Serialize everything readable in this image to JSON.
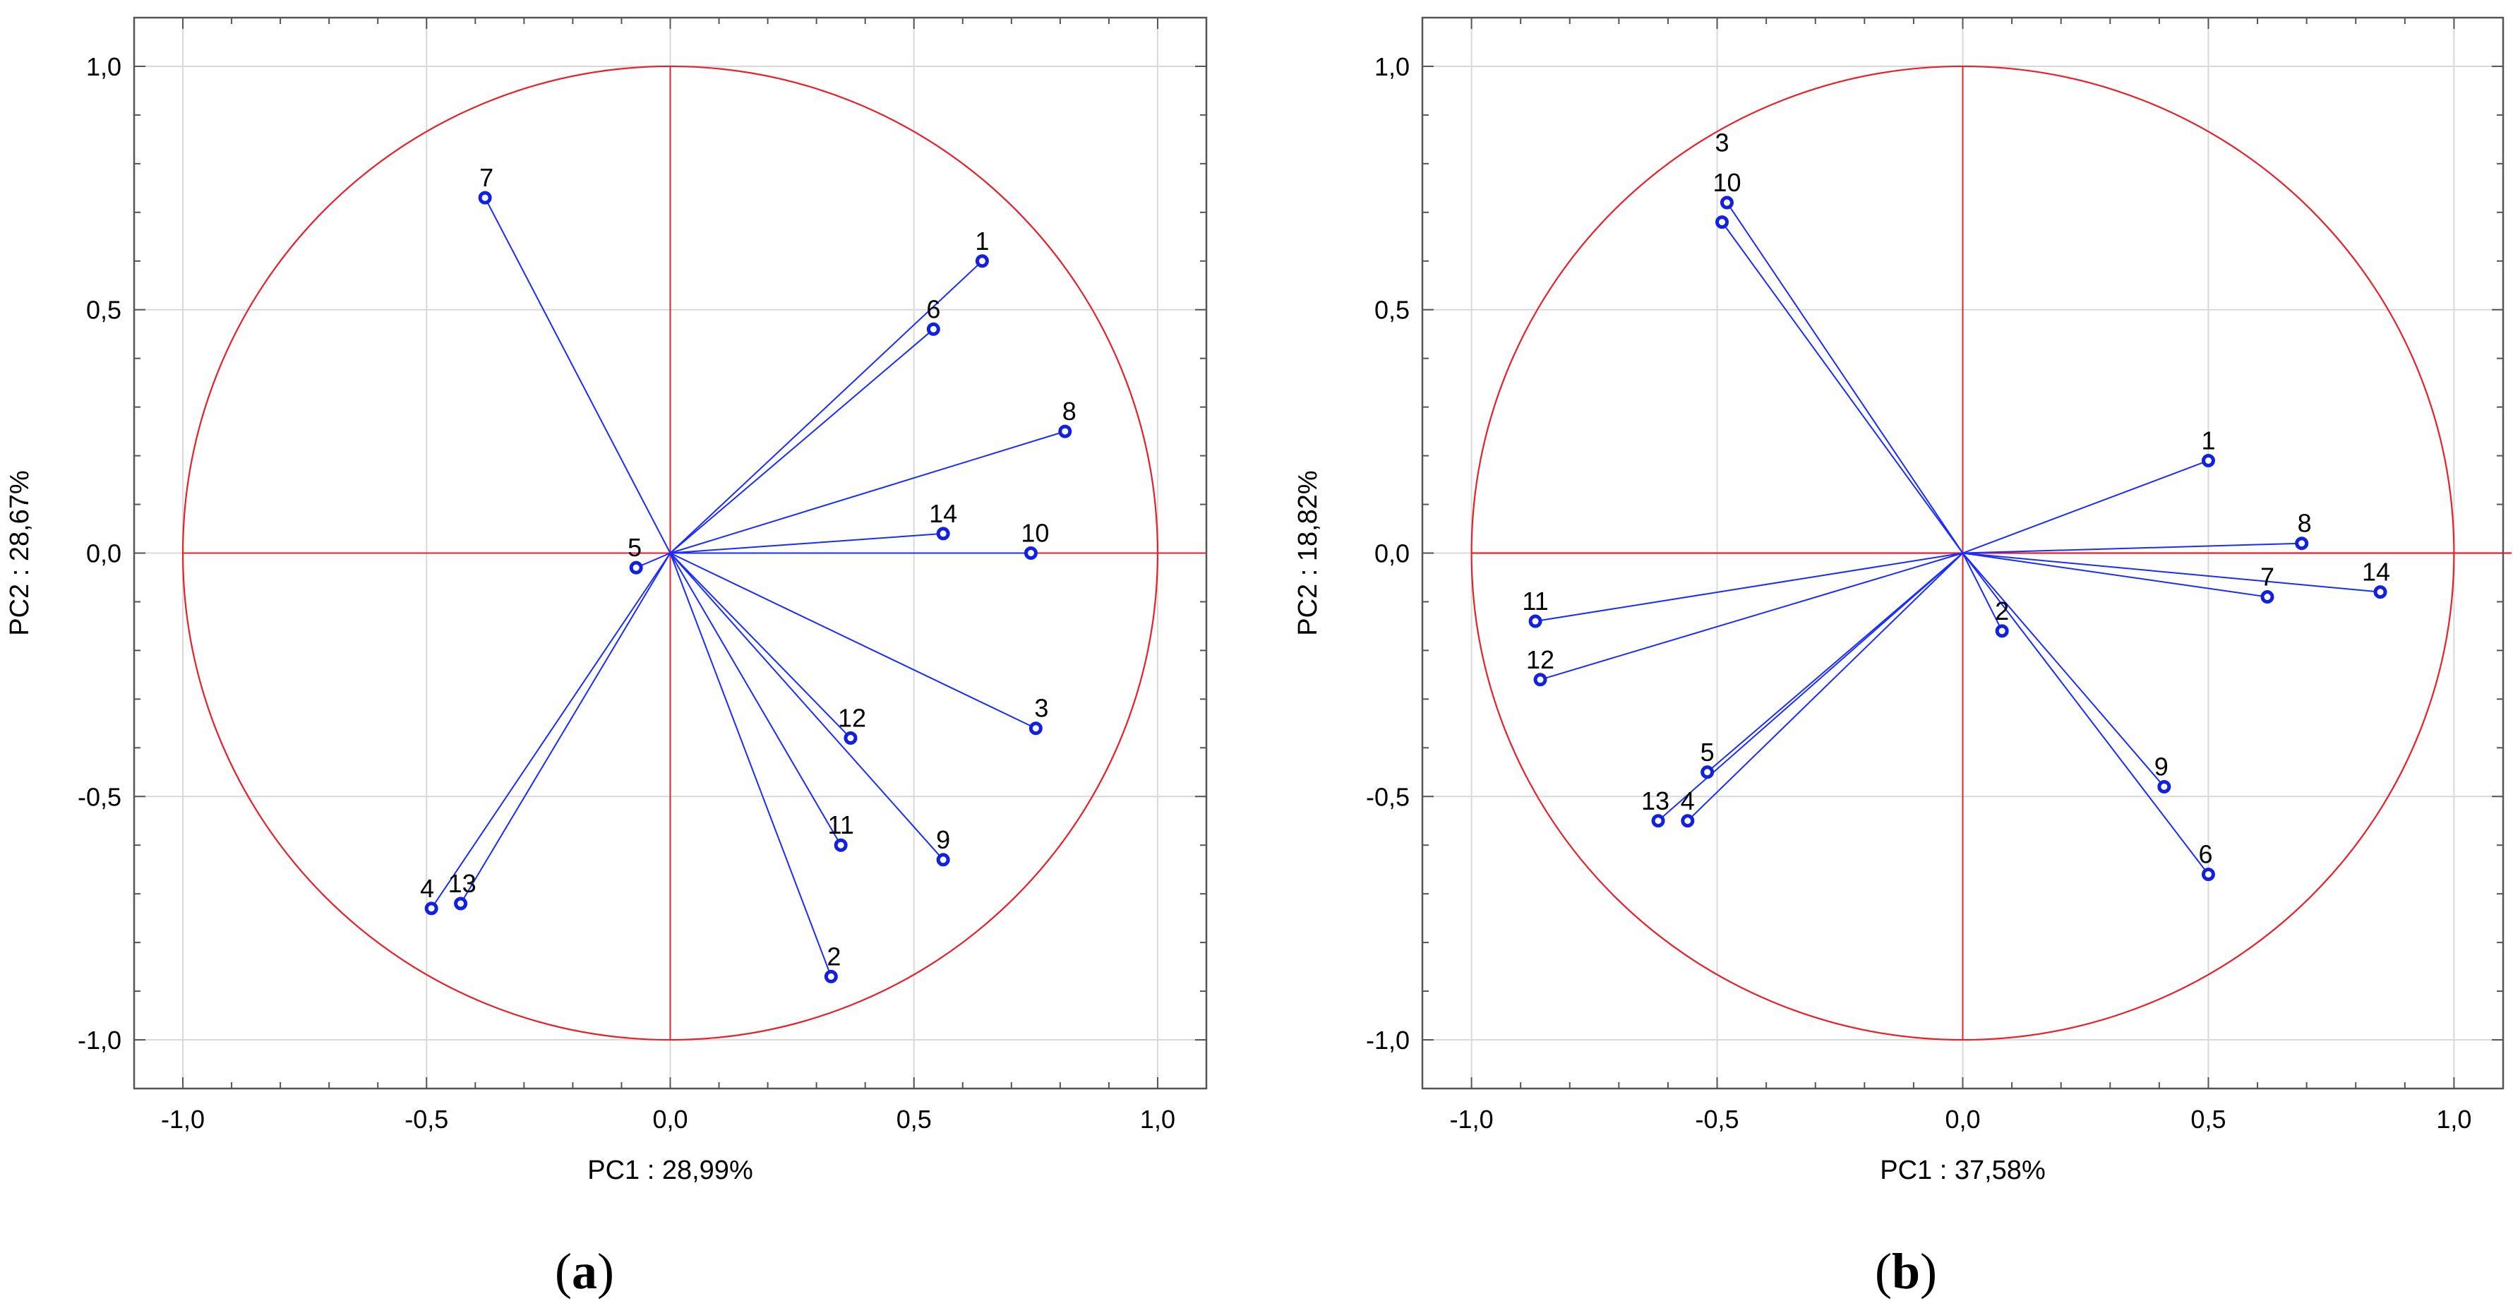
{
  "chart_data": [
    {
      "type": "scatter",
      "panel_label_open": "(",
      "panel_label_letter": "a",
      "panel_label_close": ")",
      "xlabel": "PC1 : 28,99%",
      "ylabel": "PC2 : 28,67%",
      "xlim": [
        -1.1,
        1.1
      ],
      "ylim": [
        -1.1,
        1.1
      ],
      "xticks": [
        -1.0,
        -0.5,
        0.0,
        0.5,
        1.0
      ],
      "yticks": [
        -1.0,
        -0.5,
        0.0,
        0.5,
        1.0
      ],
      "tick_labels": [
        "-1,0",
        "-0,5",
        "0,0",
        "0,5",
        "1,0"
      ],
      "grid": true,
      "unit_circle": true,
      "points": [
        {
          "label": "1",
          "x": 0.64,
          "y": 0.6
        },
        {
          "label": "2",
          "x": 0.33,
          "y": -0.87
        },
        {
          "label": "3",
          "x": 0.75,
          "y": -0.36
        },
        {
          "label": "4",
          "x": -0.49,
          "y": -0.73
        },
        {
          "label": "5",
          "x": -0.07,
          "y": -0.03
        },
        {
          "label": "6",
          "x": 0.54,
          "y": 0.46
        },
        {
          "label": "7",
          "x": -0.38,
          "y": 0.73
        },
        {
          "label": "8",
          "x": 0.81,
          "y": 0.25
        },
        {
          "label": "9",
          "x": 0.56,
          "y": -0.63
        },
        {
          "label": "10",
          "x": 0.74,
          "y": 0.0
        },
        {
          "label": "11",
          "x": 0.35,
          "y": -0.6
        },
        {
          "label": "12",
          "x": 0.37,
          "y": -0.38
        },
        {
          "label": "13",
          "x": -0.43,
          "y": -0.72
        },
        {
          "label": "14",
          "x": 0.56,
          "y": 0.04
        }
      ]
    },
    {
      "type": "scatter",
      "panel_label_open": "(",
      "panel_label_letter": "b",
      "panel_label_close": ")",
      "xlabel": "PC1 : 37,58%",
      "ylabel": "PC2 : 18,82%",
      "xlim": [
        -1.1,
        1.1
      ],
      "ylim": [
        -1.1,
        1.1
      ],
      "xticks": [
        -1.0,
        -0.5,
        0.0,
        0.5,
        1.0
      ],
      "yticks": [
        -1.0,
        -0.5,
        0.0,
        0.5,
        1.0
      ],
      "tick_labels": [
        "-1,0",
        "-0,5",
        "0,0",
        "0,5",
        "1,0"
      ],
      "grid": true,
      "unit_circle": true,
      "points": [
        {
          "label": "1",
          "x": 0.5,
          "y": 0.19
        },
        {
          "label": "2",
          "x": 0.08,
          "y": -0.16
        },
        {
          "label": "3",
          "x": -0.49,
          "y": 0.68
        },
        {
          "label": "4",
          "x": -0.56,
          "y": -0.55
        },
        {
          "label": "5",
          "x": -0.52,
          "y": -0.45
        },
        {
          "label": "6",
          "x": 0.5,
          "y": -0.66
        },
        {
          "label": "7",
          "x": 0.62,
          "y": -0.09
        },
        {
          "label": "8",
          "x": 0.69,
          "y": 0.02
        },
        {
          "label": "9",
          "x": 0.41,
          "y": -0.48
        },
        {
          "label": "10",
          "x": -0.48,
          "y": 0.72
        },
        {
          "label": "11",
          "x": -0.87,
          "y": -0.14
        },
        {
          "label": "12",
          "x": -0.86,
          "y": -0.26
        },
        {
          "label": "13",
          "x": -0.62,
          "y": -0.55
        },
        {
          "label": "14",
          "x": 0.85,
          "y": -0.08
        }
      ]
    }
  ],
  "colors": {
    "circle": "#e8202a",
    "vector": "#1a2cff",
    "point": "#1220e0",
    "grid": "#d9d9d9",
    "frame": "#555555"
  }
}
